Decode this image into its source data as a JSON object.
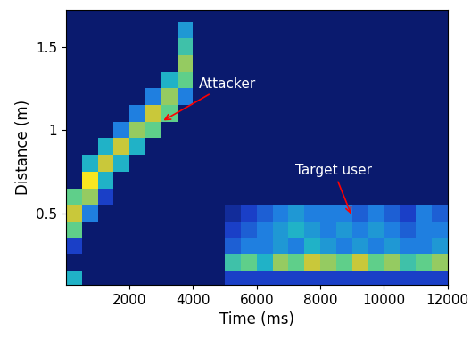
{
  "chart_data": {
    "type": "heatmap",
    "x_label": "Time (ms)",
    "y_label": "Distance (m)",
    "xlim": [
      0,
      12000
    ],
    "xticks": [
      2000,
      4000,
      6000,
      8000,
      10000,
      12000
    ],
    "ylim": [
      0.07,
      1.72
    ],
    "yticks": [
      0.5,
      1,
      1.5
    ],
    "time": [
      250,
      750,
      1250,
      1750,
      2250,
      2750,
      3250,
      3750,
      4250,
      4750,
      5250,
      5750,
      6250,
      6750,
      7250,
      7750,
      8250,
      8750,
      9250,
      9750,
      10250,
      10750,
      11250,
      11750
    ],
    "distance": [
      0.1,
      0.2,
      0.3,
      0.4,
      0.5,
      0.6,
      0.7,
      0.8,
      0.9,
      1.0,
      1.1,
      1.2,
      1.3,
      1.4,
      1.5,
      1.6,
      1.7
    ],
    "cells": [
      [
        0.4,
        0.1,
        0.1,
        0.1,
        0.1,
        0.1,
        0.1,
        0.1,
        0.1,
        0.1,
        0.2,
        0.2,
        0.2,
        0.2,
        0.2,
        0.2,
        0.2,
        0.2,
        0.2,
        0.2,
        0.2,
        0.2,
        0.2,
        0.2
      ],
      [
        0.1,
        0.1,
        0.1,
        0.1,
        0.1,
        0.1,
        0.1,
        0.1,
        0.1,
        0.1,
        0.45,
        0.5,
        0.4,
        0.55,
        0.5,
        0.6,
        0.55,
        0.5,
        0.6,
        0.5,
        0.55,
        0.45,
        0.5,
        0.55
      ],
      [
        0.2,
        0.1,
        0.1,
        0.1,
        0.1,
        0.1,
        0.1,
        0.1,
        0.1,
        0.1,
        0.25,
        0.3,
        0.3,
        0.35,
        0.3,
        0.4,
        0.35,
        0.3,
        0.35,
        0.3,
        0.35,
        0.3,
        0.3,
        0.35
      ],
      [
        0.5,
        0.1,
        0.1,
        0.1,
        0.1,
        0.1,
        0.1,
        0.1,
        0.1,
        0.1,
        0.2,
        0.25,
        0.3,
        0.35,
        0.4,
        0.35,
        0.3,
        0.35,
        0.3,
        0.35,
        0.3,
        0.25,
        0.3,
        0.3
      ],
      [
        0.6,
        0.3,
        0.1,
        0.1,
        0.1,
        0.1,
        0.1,
        0.1,
        0.1,
        0.1,
        0.15,
        0.2,
        0.25,
        0.3,
        0.35,
        0.3,
        0.3,
        0.3,
        0.25,
        0.3,
        0.25,
        0.2,
        0.3,
        0.25
      ],
      [
        0.5,
        0.55,
        0.2,
        0.1,
        0.1,
        0.1,
        0.1,
        0.1,
        0.1,
        0.1,
        0.1,
        0.1,
        0.1,
        0.1,
        0.1,
        0.1,
        0.1,
        0.1,
        0.1,
        0.1,
        0.1,
        0.1,
        0.1,
        0.1
      ],
      [
        0.1,
        0.7,
        0.4,
        0.1,
        0.1,
        0.1,
        0.1,
        0.1,
        0.1,
        0.1,
        0.1,
        0.1,
        0.1,
        0.1,
        0.1,
        0.1,
        0.1,
        0.1,
        0.1,
        0.1,
        0.1,
        0.1,
        0.1,
        0.1
      ],
      [
        0.1,
        0.4,
        0.6,
        0.4,
        0.1,
        0.1,
        0.1,
        0.1,
        0.1,
        0.1,
        0.1,
        0.1,
        0.1,
        0.1,
        0.1,
        0.1,
        0.1,
        0.1,
        0.1,
        0.1,
        0.1,
        0.1,
        0.1,
        0.1
      ],
      [
        0.1,
        0.1,
        0.4,
        0.6,
        0.4,
        0.1,
        0.1,
        0.1,
        0.1,
        0.1,
        0.1,
        0.1,
        0.1,
        0.1,
        0.1,
        0.1,
        0.1,
        0.1,
        0.1,
        0.1,
        0.1,
        0.1,
        0.1,
        0.1
      ],
      [
        0.1,
        0.1,
        0.1,
        0.3,
        0.55,
        0.5,
        0.1,
        0.1,
        0.1,
        0.1,
        0.1,
        0.1,
        0.1,
        0.1,
        0.1,
        0.1,
        0.1,
        0.1,
        0.1,
        0.1,
        0.1,
        0.1,
        0.1,
        0.1
      ],
      [
        0.1,
        0.1,
        0.1,
        0.1,
        0.3,
        0.6,
        0.5,
        0.1,
        0.1,
        0.1,
        0.1,
        0.1,
        0.1,
        0.1,
        0.1,
        0.1,
        0.1,
        0.1,
        0.1,
        0.1,
        0.1,
        0.1,
        0.1,
        0.1
      ],
      [
        0.1,
        0.1,
        0.1,
        0.1,
        0.1,
        0.3,
        0.55,
        0.3,
        0.1,
        0.1,
        0.1,
        0.1,
        0.1,
        0.1,
        0.1,
        0.1,
        0.1,
        0.1,
        0.1,
        0.1,
        0.1,
        0.1,
        0.1,
        0.1
      ],
      [
        0.1,
        0.1,
        0.1,
        0.1,
        0.1,
        0.1,
        0.4,
        0.5,
        0.1,
        0.1,
        0.1,
        0.1,
        0.1,
        0.1,
        0.1,
        0.1,
        0.1,
        0.1,
        0.1,
        0.1,
        0.1,
        0.1,
        0.1,
        0.1
      ],
      [
        0.1,
        0.1,
        0.1,
        0.1,
        0.1,
        0.1,
        0.1,
        0.55,
        0.1,
        0.1,
        0.1,
        0.1,
        0.1,
        0.1,
        0.1,
        0.1,
        0.1,
        0.1,
        0.1,
        0.1,
        0.1,
        0.1,
        0.1,
        0.1
      ],
      [
        0.1,
        0.1,
        0.1,
        0.1,
        0.1,
        0.1,
        0.1,
        0.45,
        0.1,
        0.1,
        0.1,
        0.1,
        0.1,
        0.1,
        0.1,
        0.1,
        0.1,
        0.1,
        0.1,
        0.1,
        0.1,
        0.1,
        0.1,
        0.1
      ],
      [
        0.1,
        0.1,
        0.1,
        0.1,
        0.1,
        0.1,
        0.1,
        0.35,
        0.1,
        0.1,
        0.1,
        0.1,
        0.1,
        0.1,
        0.1,
        0.1,
        0.1,
        0.1,
        0.1,
        0.1,
        0.1,
        0.1,
        0.1,
        0.1
      ],
      [
        0.1,
        0.1,
        0.1,
        0.1,
        0.1,
        0.1,
        0.1,
        0.1,
        0.1,
        0.1,
        0.1,
        0.1,
        0.1,
        0.1,
        0.1,
        0.1,
        0.1,
        0.1,
        0.1,
        0.1,
        0.1,
        0.1,
        0.1,
        0.1
      ]
    ],
    "annotations": [
      {
        "text": "Attacker",
        "x": 3000,
        "y": 1.05
      },
      {
        "text": "Target user",
        "x": 9000,
        "y": 0.48
      }
    ]
  }
}
